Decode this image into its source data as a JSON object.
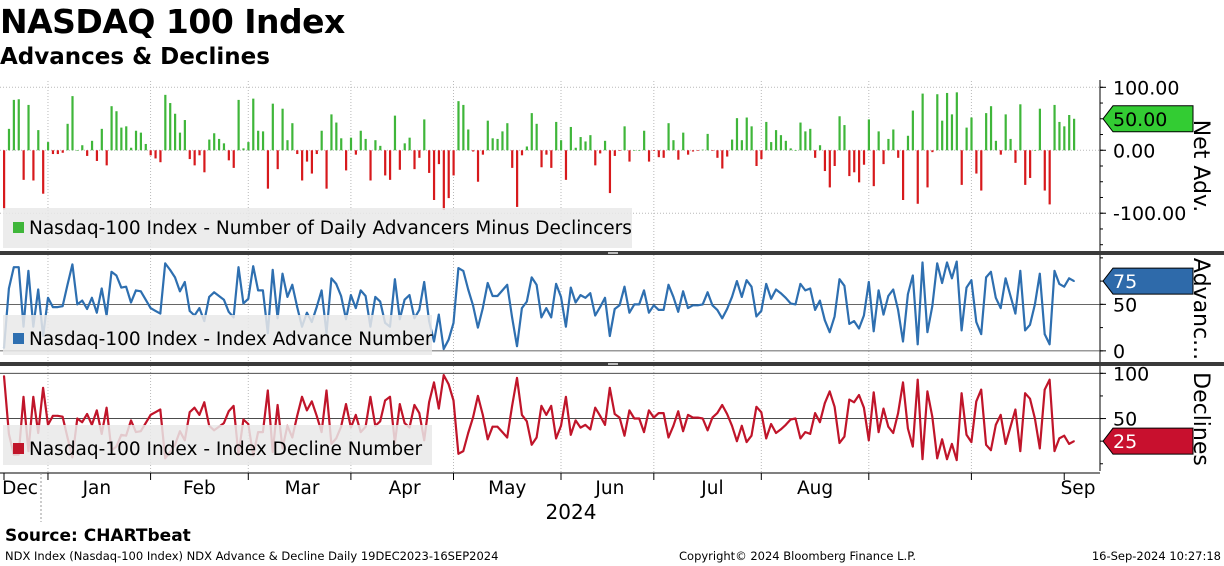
{
  "header": {
    "title": "NASDAQ 100 Index",
    "subtitle": "Advances & Declines"
  },
  "source": "Source: CHARTbeat",
  "footer": {
    "left": "NDX Index (Nasdaq-100 Index) NDX Advance & Decline  Daily 19DEC2023-16SEP2024",
    "center": "Copyright© 2024 Bloomberg Finance L.P.",
    "right": "16-Sep-2024 10:27:18"
  },
  "chart_data": [
    {
      "type": "bar",
      "panel": "net",
      "legend": "Nasdaq-100 Index - Number of Daily Advancers Minus Declincers",
      "axis_title": "Net Adv.",
      "ticks": [
        "100.00",
        "0.00",
        "-100.00"
      ],
      "tick_values": [
        100,
        0,
        -100
      ],
      "ylim": [
        -160,
        110
      ],
      "last_value": "50.00",
      "colors": {
        "positive": "#3fb63a",
        "negative": "#d7191c",
        "badge": "#33cc33"
      },
      "values": [
        -94,
        34,
        80,
        81,
        -47,
        72,
        -48,
        32,
        -69,
        13,
        -6,
        -6,
        -4,
        42,
        86,
        0,
        8,
        -9,
        15,
        -17,
        34,
        -24,
        70,
        62,
        36,
        38,
        4,
        31,
        28,
        10,
        -8,
        -13,
        -19,
        88,
        75,
        58,
        28,
        48,
        -14,
        -24,
        -8,
        -35,
        17,
        27,
        18,
        11,
        -16,
        -28,
        80,
        3,
        13,
        82,
        31,
        30,
        -61,
        74,
        -30,
        66,
        16,
        43,
        -6,
        -48,
        -18,
        -37,
        -6,
        31,
        -61,
        57,
        44,
        19,
        -32,
        20,
        -7,
        31,
        18,
        -48,
        16,
        7,
        -40,
        -47,
        55,
        -31,
        11,
        20,
        -30,
        -12,
        49,
        -36,
        -79,
        -22,
        -95,
        -76,
        -40,
        78,
        72,
        33,
        -2,
        -50,
        -7,
        47,
        19,
        18,
        30,
        43,
        -28,
        -90,
        -8,
        6,
        59,
        42,
        -27,
        -7,
        -28,
        45,
        16,
        -47,
        37,
        4,
        21,
        14,
        24,
        -24,
        -5,
        15,
        -68,
        -9,
        -1,
        38,
        -18,
        0,
        0,
        31,
        -18,
        -1,
        -11,
        -12,
        43,
        16,
        -15,
        28,
        -7,
        -2,
        -1,
        1,
        26,
        -1,
        -12,
        -29,
        -10,
        17,
        51,
        16,
        52,
        38,
        -25,
        -14,
        45,
        13,
        32,
        24,
        15,
        3,
        0,
        44,
        30,
        34,
        -12,
        8,
        -33,
        -59,
        -25,
        54,
        40,
        -41,
        -35,
        -51,
        -23,
        49,
        -57,
        30,
        -22,
        18,
        33,
        -12,
        -79,
        23,
        63,
        -85,
        90,
        -59,
        -3,
        89,
        47,
        91,
        57,
        92,
        -55,
        36,
        52,
        -37,
        -64,
        59,
        70,
        15,
        -7,
        57,
        18,
        -20,
        73,
        -55,
        -44,
        0,
        66,
        -64,
        -86,
        72,
        45,
        38,
        56,
        50
      ]
    },
    {
      "type": "line",
      "panel": "adv",
      "legend": "Nasdaq-100 Index - Index Advance Number",
      "axis_title": "Advanc...",
      "ticks": [
        "50",
        "0"
      ],
      "tick_values": [
        50,
        0
      ],
      "ylim": [
        -12,
        102
      ],
      "last_value": "75",
      "colors": {
        "line": "#2e6fb0",
        "badge": "#2e6aaa"
      },
      "values": [
        3,
        67,
        90,
        90,
        26,
        86,
        26,
        66,
        16,
        57,
        47,
        47,
        48,
        71,
        93,
        50,
        54,
        45,
        57,
        41,
        67,
        38,
        85,
        81,
        68,
        69,
        52,
        65,
        64,
        55,
        46,
        43,
        40,
        94,
        87,
        79,
        64,
        74,
        43,
        38,
        46,
        32,
        58,
        63,
        59,
        55,
        42,
        36,
        90,
        51,
        56,
        91,
        65,
        65,
        19,
        87,
        35,
        83,
        58,
        71,
        47,
        26,
        41,
        31,
        47,
        65,
        19,
        78,
        72,
        59,
        34,
        60,
        46,
        65,
        59,
        26,
        58,
        53,
        30,
        26,
        77,
        34,
        55,
        60,
        35,
        44,
        74,
        32,
        10,
        39,
        2,
        12,
        30,
        89,
        86,
        66,
        49,
        25,
        46,
        73,
        59,
        59,
        65,
        71,
        36,
        5,
        46,
        53,
        79,
        71,
        36,
        46,
        36,
        72,
        58,
        26,
        68,
        52,
        60,
        57,
        62,
        38,
        47,
        57,
        16,
        45,
        49,
        69,
        41,
        50,
        50,
        65,
        41,
        49,
        44,
        44,
        71,
        58,
        42,
        64,
        46,
        49,
        49,
        50,
        63,
        49,
        44,
        35,
        45,
        58,
        75,
        58,
        76,
        69,
        37,
        43,
        72,
        56,
        66,
        62,
        57,
        51,
        50,
        72,
        65,
        67,
        44,
        54,
        33,
        20,
        37,
        77,
        70,
        29,
        32,
        24,
        38,
        74,
        21,
        65,
        39,
        59,
        66,
        44,
        10,
        61,
        81,
        7,
        95,
        20,
        48,
        94,
        73,
        95,
        78,
        96,
        22,
        68,
        76,
        31,
        18,
        79,
        85,
        57,
        46,
        78,
        59,
        40,
        86,
        22,
        28,
        50,
        83,
        18,
        7,
        86,
        72,
        69,
        78,
        75
      ]
    },
    {
      "type": "line",
      "panel": "dec",
      "legend": "Nasdaq-100 Index - Index Decline Number",
      "axis_title": "Declines",
      "ticks": [
        "100",
        "50"
      ],
      "tick_values": [
        100,
        50
      ],
      "ylim": [
        -8,
        107
      ],
      "last_value": "25",
      "colors": {
        "line": "#c0152a",
        "badge": "#c8102e"
      },
      "values": [
        97,
        33,
        10,
        10,
        74,
        14,
        74,
        34,
        84,
        43,
        53,
        53,
        52,
        29,
        7,
        50,
        46,
        55,
        43,
        59,
        33,
        62,
        15,
        19,
        32,
        31,
        48,
        35,
        36,
        45,
        54,
        57,
        60,
        6,
        13,
        21,
        36,
        26,
        57,
        62,
        54,
        68,
        42,
        37,
        41,
        45,
        58,
        64,
        10,
        49,
        44,
        9,
        35,
        35,
        81,
        13,
        65,
        17,
        42,
        29,
        53,
        74,
        59,
        69,
        53,
        35,
        81,
        22,
        28,
        41,
        66,
        40,
        54,
        35,
        41,
        74,
        42,
        47,
        70,
        74,
        23,
        66,
        45,
        40,
        65,
        56,
        26,
        68,
        90,
        61,
        98,
        88,
        70,
        11,
        14,
        34,
        51,
        75,
        54,
        27,
        41,
        41,
        35,
        29,
        64,
        95,
        54,
        47,
        21,
        29,
        64,
        54,
        64,
        28,
        42,
        74,
        32,
        48,
        40,
        43,
        38,
        62,
        53,
        43,
        84,
        55,
        51,
        31,
        59,
        50,
        50,
        35,
        59,
        51,
        56,
        56,
        29,
        42,
        58,
        36,
        54,
        51,
        51,
        50,
        37,
        51,
        56,
        65,
        55,
        42,
        25,
        42,
        24,
        31,
        63,
        57,
        28,
        44,
        34,
        38,
        43,
        49,
        50,
        28,
        35,
        33,
        56,
        46,
        67,
        80,
        63,
        23,
        30,
        71,
        68,
        76,
        62,
        26,
        79,
        35,
        61,
        41,
        34,
        56,
        90,
        39,
        19,
        93,
        5,
        80,
        52,
        6,
        27,
        5,
        22,
        4,
        78,
        32,
        24,
        69,
        82,
        21,
        15,
        43,
        54,
        22,
        41,
        60,
        14,
        78,
        72,
        50,
        17,
        82,
        93,
        14,
        28,
        31,
        22,
        25
      ]
    }
  ],
  "time_axis": {
    "months": [
      "Dec",
      "Jan",
      "Feb",
      "Mar",
      "Apr",
      "May",
      "Jun",
      "Jul",
      "Aug",
      "Sep"
    ],
    "year": "2024"
  }
}
